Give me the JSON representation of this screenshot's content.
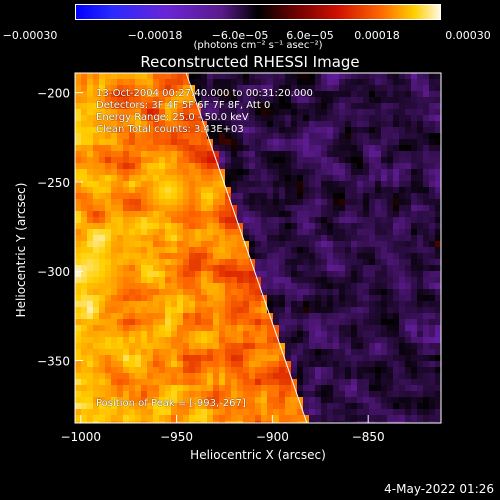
{
  "chart_data": {
    "type": "heatmap",
    "title": "Reconstructed RHESSI Image",
    "xlabel": "Heliocentric X (arcsec)",
    "ylabel": "Heliocentric Y (arcsec)",
    "xlim": [
      -1003,
      -812
    ],
    "ylim": [
      -385,
      -189
    ],
    "x_ticks": [
      -1000,
      -950,
      -900,
      -850
    ],
    "x_tick_labels": [
      "−1000",
      "−950",
      "−900",
      "−850"
    ],
    "y_ticks": [
      -200,
      -250,
      -300,
      -350
    ],
    "y_tick_labels": [
      "−200",
      "−250",
      "−300",
      "−350"
    ],
    "colorbar": {
      "min": -0.0003,
      "max": 0.0003,
      "ticks": [
        -0.0003,
        -0.00018,
        -6e-05,
        6e-05,
        0.00018,
        0.0003
      ],
      "tick_labels": [
        "−0.00030",
        "−0.00018",
        "−6.0e−05",
        "6.0e−05",
        "0.00018",
        "0.00030"
      ],
      "unit_label": "(photons cm⁻² s⁻¹ asec⁻²)",
      "colors": [
        "#0000ff",
        "#6a24d6",
        "#5a1a8a",
        "#000000",
        "#d01000",
        "#ff6a00",
        "#ffd000",
        "#fff8e0"
      ]
    },
    "limb_line": {
      "x1": -945,
      "y1": -189,
      "x2": -882,
      "y2": -385
    },
    "annotations": {
      "time_range": "13-Oct-2004 00:27:40.000 to 00:31:20.000",
      "detectors": "Detectors: 3F 4F 5F 6F 7F 8F, Att 0",
      "energy_range": "Energy Range: 25.0 - 50.0 keV",
      "method_counts": "Clean     Total counts: 3.43E+03",
      "peak_position": "Position of Peak = [-993,-267]"
    },
    "grid": false,
    "legend": "none"
  },
  "footer": {
    "date": "4-May-2022 01:26"
  }
}
